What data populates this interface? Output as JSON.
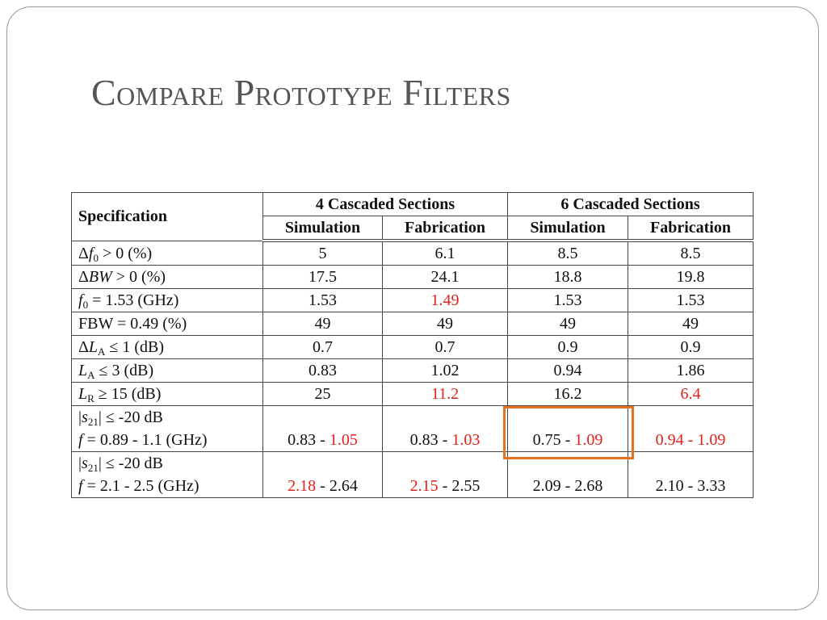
{
  "title": "Compare Prototype Filters",
  "table": {
    "header": [
      [
        "Specification",
        "4 Cascaded Sections",
        "6 Cascaded Sections"
      ],
      [
        "Simulation",
        "Fabrication",
        "Simulation",
        "Fabrication"
      ]
    ],
    "rows": [
      [
        [
          [
            "Δ",
            {
              "text": "f",
              "style": "italic"
            },
            {
              "text": "0",
              "style": "sub"
            },
            " > 0 (%)"
          ]
        ],
        "5",
        "6.1",
        "8.5",
        "8.5"
      ],
      [
        [
          [
            "Δ",
            {
              "text": "BW",
              "style": "italic"
            },
            " > 0 (%)"
          ]
        ],
        "17.5",
        "24.1",
        "18.8",
        "19.8"
      ],
      [
        [
          [
            {
              "text": "f",
              "style": "italic"
            },
            {
              "text": "0",
              "style": "sub"
            },
            " = 1.53 (GHz)"
          ]
        ],
        "1.53",
        [
          [
            {
              "text": "1.49",
              "color": "#e3201b"
            }
          ]
        ],
        "1.53",
        "1.53"
      ],
      [
        "FBW = 0.49 (%)",
        "49",
        "49",
        "49",
        "49"
      ],
      [
        [
          [
            "Δ",
            {
              "text": "L",
              "style": "italic"
            },
            {
              "text": "A",
              "style": "sub"
            },
            " ≤ 1 (dB)"
          ]
        ],
        "0.7",
        "0.7",
        "0.9",
        "0.9"
      ],
      [
        [
          [
            {
              "text": "L",
              "style": "italic"
            },
            {
              "text": "A",
              "style": "sub"
            },
            " ≤ 3 (dB)"
          ]
        ],
        "0.83",
        "1.02",
        "0.94",
        "1.86"
      ],
      [
        [
          [
            {
              "text": "L",
              "style": "italic"
            },
            {
              "text": "R",
              "style": "sub"
            },
            " ≥ 15 (dB)"
          ]
        ],
        "25",
        [
          [
            {
              "text": "11.2",
              "color": "#e3201b"
            }
          ]
        ],
        "16.2",
        [
          [
            {
              "text": "6.4",
              "color": "#e3201b"
            }
          ]
        ]
      ],
      [
        [
          [
            "|",
            {
              "text": "s",
              "style": "italic"
            },
            {
              "text": "21",
              "style": "sub"
            },
            "| ≤ -20 dB"
          ],
          [
            {
              "text": "f",
              "style": "italic"
            },
            " = 0.89 - 1.1 (GHz)"
          ]
        ],
        [
          [
            "0.83 - ",
            {
              "text": "1.05",
              "color": "#e3201b"
            }
          ]
        ],
        [
          [
            "0.83 - ",
            {
              "text": "1.03",
              "color": "#e3201b"
            }
          ]
        ],
        [
          [
            "0.75 - ",
            {
              "text": "1.09",
              "color": "#e3201b"
            }
          ]
        ],
        [
          [
            {
              "text": "0.94 - 1.09",
              "color": "#e3201b"
            }
          ]
        ]
      ],
      [
        [
          [
            "|",
            {
              "text": "s",
              "style": "italic"
            },
            {
              "text": "21",
              "style": "sub"
            },
            "| ≤ -20 dB"
          ],
          [
            {
              "text": "f",
              "style": "italic"
            },
            " = 2.1 - 2.5 (GHz)"
          ]
        ],
        [
          [
            {
              "text": "2.18",
              "color": "#e3201b"
            },
            " - 2.64"
          ]
        ],
        [
          [
            {
              "text": "2.15",
              "color": "#e3201b"
            },
            " - 2.55"
          ]
        ],
        "2.09 - 2.68",
        "2.10 - 3.33"
      ]
    ]
  }
}
